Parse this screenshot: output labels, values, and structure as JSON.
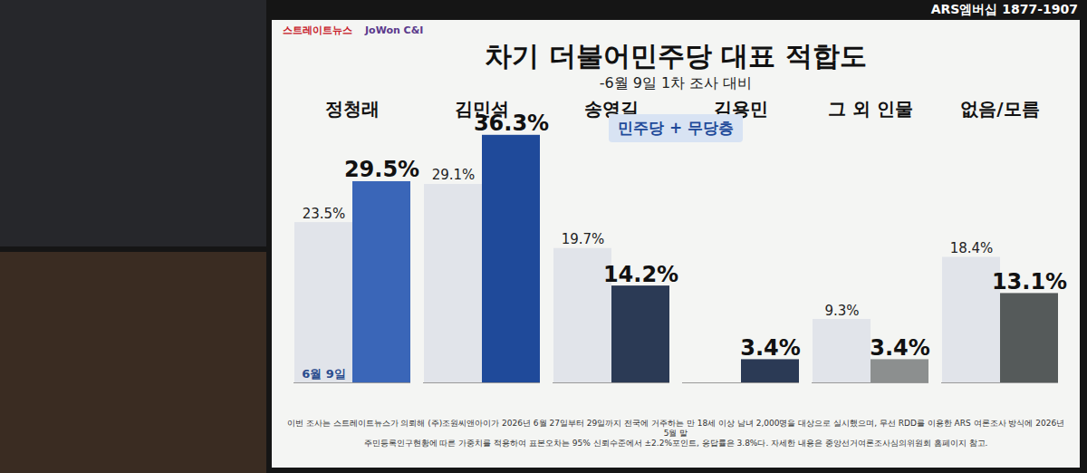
{
  "page": {
    "corner_text": "ARS엠버십 1877-1907",
    "logos": [
      "스트레이트뉴스",
      "JoWon C&I"
    ],
    "badge": "민주당 + 무당층",
    "footnote": [
      "이번 조사는 스트레이트뉴스가 의뢰해 (주)조원씨앤아이가 2026년 6월 27일부터 29일까지 전국에 거주하는 만 18세 이상 남녀 2,000명을 대상으로 실시했으며, 무선 RDD를 이용한 ARS 여론조사 방식에 2026년 5월 말",
      "주민등록인구현황에 따른 가중치를 적용하여 표본오차는 95% 신뢰수준에서 ±2.2%포인트, 응답률은 3.8%다. 자세한 내용은 중앙선거여론조사심의위원회 홈페이지 참고."
    ]
  },
  "chart_data": {
    "type": "bar",
    "title": "차기 더불어민주당 대표 적합도",
    "subtitle": "-6월 9일 1차 조사 대비",
    "categories": [
      "정청래",
      "김민석",
      "송영길",
      "김용민",
      "그 외 인물",
      "없음/모름"
    ],
    "series": [
      {
        "name": "6월 9일",
        "color": "#e1e4ea",
        "values": [
          23.5,
          29.1,
          19.7,
          null,
          9.3,
          18.4
        ],
        "value_labels": [
          "23.5%",
          "29.1%",
          "19.7%",
          null,
          "9.3%",
          "18.4%"
        ]
      },
      {
        "colors": [
          "#3a66b8",
          "#1f4a9a",
          "#2b3a55",
          "#2b3a55",
          "#8c8f8f",
          "#555a5a"
        ],
        "values": [
          29.5,
          36.3,
          14.2,
          3.4,
          3.4,
          13.1
        ],
        "value_labels": [
          "29.5%",
          "36.3%",
          "14.2%",
          "3.4%",
          "3.4%",
          "13.1%"
        ]
      }
    ],
    "ylim": [
      0,
      38
    ],
    "grid": false,
    "data_labels": true,
    "tick_labels": "x"
  }
}
